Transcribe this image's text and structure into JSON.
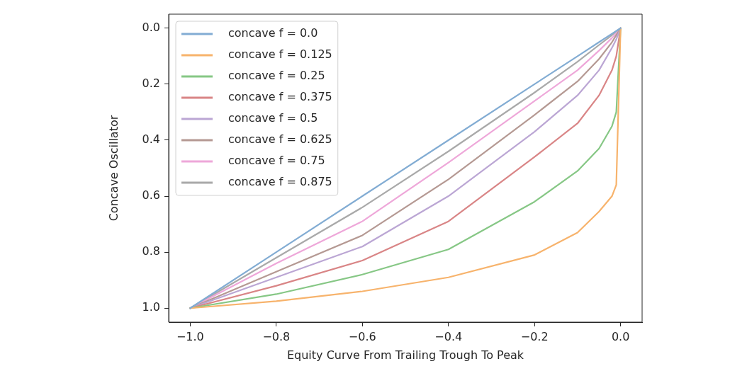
{
  "chart_data": {
    "type": "line",
    "xlabel": "Equity Curve From Trailing Trough To Peak",
    "ylabel": "Concave Oscillator",
    "x": [
      -1,
      -0.8,
      -0.6,
      -0.4,
      -0.2,
      -0.1,
      -0.05,
      -0.02,
      -0.01,
      0
    ],
    "series": [
      {
        "name": "concave f = 0.0",
        "color": "#82acd3",
        "values": [
          1,
          0.8,
          0.6,
          0.4,
          0.2,
          0.1,
          0.05,
          0.02,
          0.01,
          0
        ]
      },
      {
        "name": "concave f = 0.125",
        "color": "#f7b36c",
        "values": [
          1,
          0.975,
          0.94,
          0.89,
          0.81,
          0.73,
          0.655,
          0.6,
          0.56,
          0
        ]
      },
      {
        "name": "concave f = 0.25",
        "color": "#86c785",
        "values": [
          1,
          0.95,
          0.88,
          0.79,
          0.62,
          0.51,
          0.43,
          0.35,
          0.3,
          0
        ]
      },
      {
        "name": "concave f = 0.375",
        "color": "#d98586",
        "values": [
          1,
          0.92,
          0.83,
          0.69,
          0.46,
          0.34,
          0.24,
          0.15,
          0.1,
          0
        ]
      },
      {
        "name": "concave f = 0.5",
        "color": "#bba6d4",
        "values": [
          1,
          0.89,
          0.78,
          0.6,
          0.37,
          0.24,
          0.15,
          0.07,
          0.04,
          0
        ]
      },
      {
        "name": "concave f = 0.625",
        "color": "#b59993",
        "values": [
          1,
          0.87,
          0.74,
          0.54,
          0.31,
          0.19,
          0.11,
          0.05,
          0.025,
          0
        ]
      },
      {
        "name": "concave f = 0.75",
        "color": "#eea7d9",
        "values": [
          1,
          0.84,
          0.69,
          0.48,
          0.26,
          0.15,
          0.08,
          0.035,
          0.018,
          0
        ]
      },
      {
        "name": "concave f = 0.875",
        "color": "#a9a9a9",
        "values": [
          1,
          0.82,
          0.64,
          0.44,
          0.23,
          0.12,
          0.06,
          0.025,
          0.012,
          0
        ]
      }
    ],
    "xlim": [
      -1.05,
      0.05
    ],
    "xticks": [
      {
        "value": -1,
        "label": "−1.0"
      },
      {
        "value": -0.8,
        "label": "−0.8"
      },
      {
        "value": -0.6,
        "label": "−0.6"
      },
      {
        "value": -0.4,
        "label": "−0.4"
      },
      {
        "value": -0.2,
        "label": "−0.2"
      },
      {
        "value": 0,
        "label": "0.0"
      }
    ],
    "ylim": [
      1.05,
      -0.05
    ],
    "yticks": [
      {
        "value": 0,
        "label": "0.0"
      },
      {
        "value": 0.2,
        "label": "0.2"
      },
      {
        "value": 0.4,
        "label": "0.4"
      },
      {
        "value": 0.6,
        "label": "0.6"
      },
      {
        "value": 0.8,
        "label": "0.8"
      },
      {
        "value": 1,
        "label": "1.0"
      }
    ],
    "grid": false,
    "legend": "top left",
    "marker": "none",
    "line_style": "solid"
  }
}
